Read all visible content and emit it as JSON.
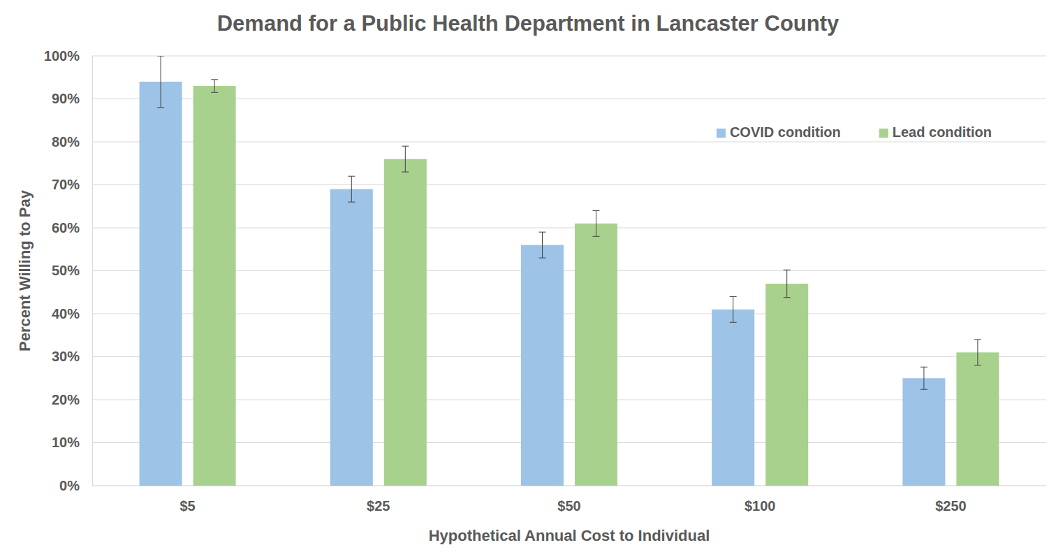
{
  "chart_data": {
    "type": "bar",
    "title": "Demand for a Public Health Department in Lancaster County",
    "x_label": "Hypothetical Annual Cost to Individual",
    "y_label": "Percent Willing to Pay",
    "categories": [
      "$5",
      "$25",
      "$50",
      "$100",
      "$250"
    ],
    "series": [
      {
        "name": "COVID condition",
        "color": "#9dc3e6",
        "values": [
          94,
          69,
          56,
          41,
          25
        ],
        "errors": [
          6,
          3,
          3,
          3,
          2.6
        ]
      },
      {
        "name": "Lead condition",
        "color": "#a9d18e",
        "values": [
          93,
          76,
          61,
          47,
          31
        ],
        "errors": [
          1.5,
          3,
          3,
          3.2,
          3
        ]
      }
    ],
    "ylim": [
      0,
      100
    ],
    "yticks": [
      {
        "value": 0,
        "label": "0%"
      },
      {
        "value": 10,
        "label": "10%"
      },
      {
        "value": 20,
        "label": "20%"
      },
      {
        "value": 30,
        "label": "30%"
      },
      {
        "value": 40,
        "label": "40%"
      },
      {
        "value": 50,
        "label": "50%"
      },
      {
        "value": 60,
        "label": "60%"
      },
      {
        "value": 70,
        "label": "70%"
      },
      {
        "value": 80,
        "label": "80%"
      },
      {
        "value": 90,
        "label": "90%"
      },
      {
        "value": 100,
        "label": "100%"
      }
    ],
    "grid": true,
    "legend": "upper right"
  }
}
